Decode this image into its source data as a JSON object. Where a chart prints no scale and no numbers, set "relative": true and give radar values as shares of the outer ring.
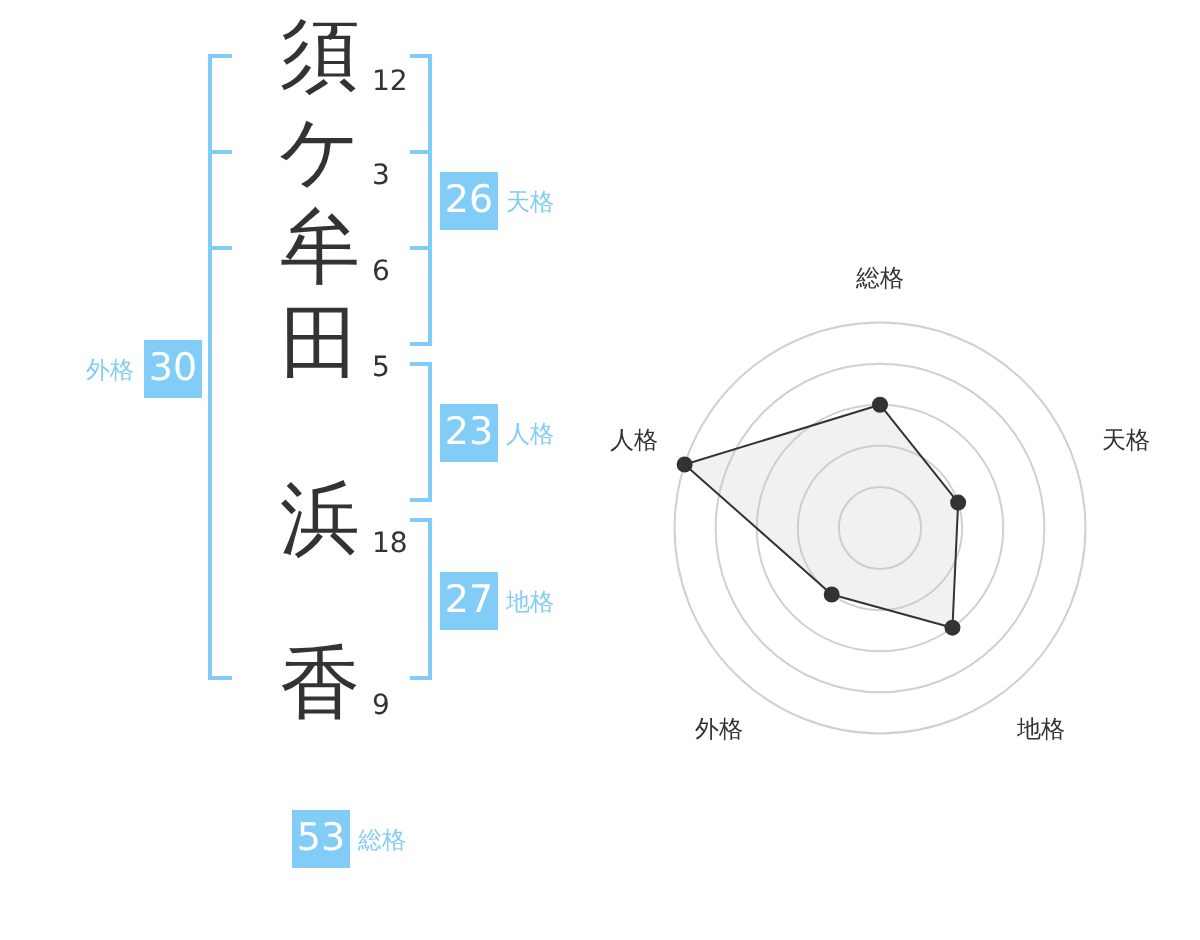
{
  "chart_data": [
    {
      "type": "other",
      "categories": [
        "須",
        "ケ",
        "牟",
        "田",
        "浜",
        "香"
      ],
      "values": [
        12,
        3,
        6,
        5,
        18,
        9
      ],
      "data_labels": true
    },
    {
      "type": "other",
      "categories": [
        "天格",
        "人格",
        "地格",
        "外格",
        "総格"
      ],
      "values": [
        26,
        23,
        27,
        30,
        53
      ],
      "data_labels": true
    },
    {
      "type": "radar",
      "categories": [
        "総格",
        "天格",
        "地格",
        "外格",
        "人格"
      ],
      "relative": true,
      "grid": true,
      "marker": "circle",
      "legend": false,
      "series": [
        {
          "color": "#333333",
          "values": [
            0.6,
            0.4,
            0.6,
            0.4,
            1
          ]
        }
      ]
    }
  ]
}
